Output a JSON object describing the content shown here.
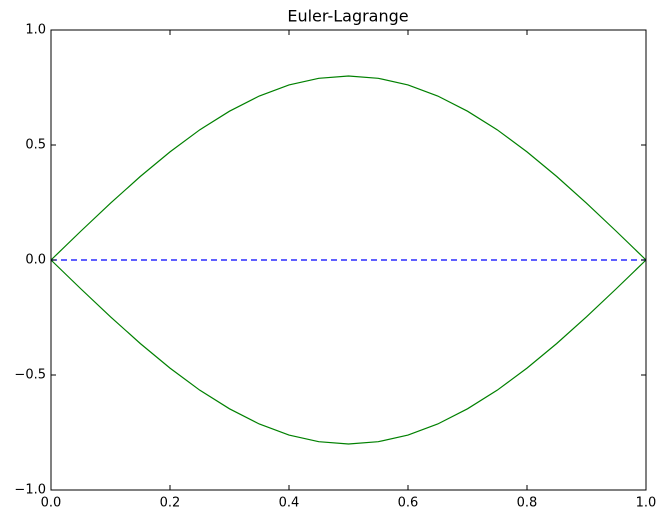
{
  "chart_data": {
    "type": "line",
    "title": "Euler-Lagrange",
    "x": [
      0,
      0.05,
      0.1,
      0.15,
      0.2,
      0.25,
      0.3,
      0.35,
      0.4,
      0.45,
      0.5,
      0.55,
      0.6,
      0.65,
      0.7,
      0.75,
      0.8,
      0.85,
      0.9,
      0.95,
      1
    ],
    "series": [
      {
        "color": "#008000",
        "dash": false,
        "values": [
          0,
          0.125,
          0.247,
          0.363,
          0.47,
          0.566,
          0.647,
          0.713,
          0.761,
          0.79,
          0.8,
          0.79,
          0.761,
          0.713,
          0.647,
          0.566,
          0.47,
          0.363,
          0.247,
          0.125,
          0
        ]
      },
      {
        "color": "#008000",
        "dash": false,
        "values": [
          0,
          -0.125,
          -0.247,
          -0.363,
          -0.47,
          -0.566,
          -0.647,
          -0.713,
          -0.761,
          -0.79,
          -0.8,
          -0.79,
          -0.761,
          -0.713,
          -0.647,
          -0.566,
          -0.47,
          -0.363,
          -0.247,
          -0.125,
          0
        ]
      },
      {
        "color": "#0000ff",
        "dash": true,
        "values": [
          0,
          0,
          0,
          0,
          0,
          0,
          0,
          0,
          0,
          0,
          0,
          0,
          0,
          0,
          0,
          0,
          0,
          0,
          0,
          0,
          0
        ]
      }
    ],
    "xlim": [
      0,
      1
    ],
    "xticks": [
      {
        "value": 0,
        "label": "0.0"
      },
      0.2,
      0.4,
      0.6,
      0.8,
      {
        "value": 1,
        "label": "1.0"
      }
    ],
    "ylim": [
      -1,
      1
    ],
    "yticks": [
      {
        "value": -1,
        "label": "−1.0"
      },
      {
        "value": -0.5,
        "label": "−0.5"
      },
      {
        "value": 0,
        "label": "0.0"
      },
      {
        "value": 0.5,
        "label": "0.5"
      },
      {
        "value": 1,
        "label": "1.0"
      }
    ],
    "grid": false
  }
}
